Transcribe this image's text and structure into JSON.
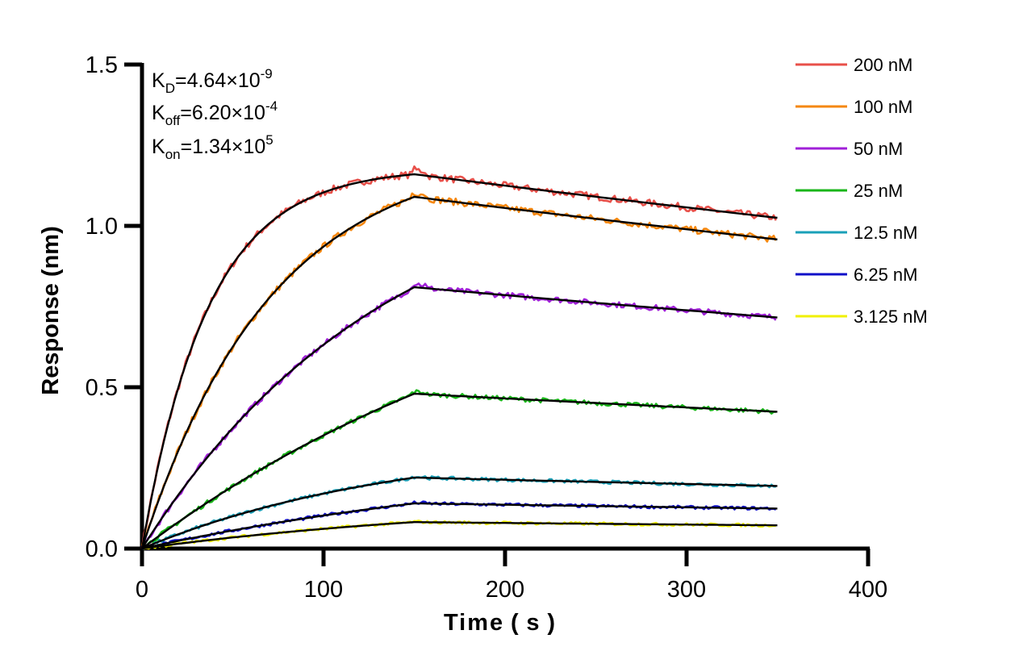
{
  "chart_data": {
    "type": "line",
    "title": "",
    "xlabel": "Time ( s )",
    "ylabel": "Response (nm)",
    "xlim": [
      0,
      400
    ],
    "ylim": [
      0,
      1.5
    ],
    "xticks": [
      "0",
      "100",
      "200",
      "300",
      "400"
    ],
    "yticks": [
      "0.0",
      "0.5",
      "1.0",
      "1.5"
    ],
    "grid": false,
    "legend_position": "top-right",
    "association_end_s": 150,
    "experiment_end_s": 350,
    "annotations": {
      "kd": {
        "base": "K",
        "sub": "D",
        "value": "=4.64×10",
        "exp": "-9"
      },
      "koff": {
        "base": "K",
        "sub": "off",
        "value": "=6.20×10",
        "exp": "-4"
      },
      "kon": {
        "base": "K",
        "sub": "on",
        "value": "=1.34×10",
        "exp": "5"
      }
    },
    "series": [
      {
        "name": "200 nM",
        "color": "#e8504a",
        "plateau": 1.16,
        "end": 1.025,
        "kobs": 0.0275
      },
      {
        "name": "100 nM",
        "color": "#f5870f",
        "plateau": 1.09,
        "end": 0.958,
        "kobs": 0.014
      },
      {
        "name": "50 nM",
        "color": "#a020d8",
        "plateau": 0.81,
        "end": 0.716,
        "kobs": 0.0074
      },
      {
        "name": "25 nM",
        "color": "#19b619",
        "plateau": 0.48,
        "end": 0.424,
        "kobs": 0.004
      },
      {
        "name": "12.5 nM",
        "color": "#1aa0b8",
        "plateau": 0.22,
        "end": 0.194,
        "kobs": 0.007
      },
      {
        "name": "6.25 nM",
        "color": "#1010c8",
        "plateau": 0.14,
        "end": 0.124,
        "kobs": 0.004
      },
      {
        "name": "3.125 nM",
        "color": "#f0f000",
        "plateau": 0.082,
        "end": 0.072,
        "kobs": 0.005
      }
    ],
    "fit_color": "#000000"
  }
}
